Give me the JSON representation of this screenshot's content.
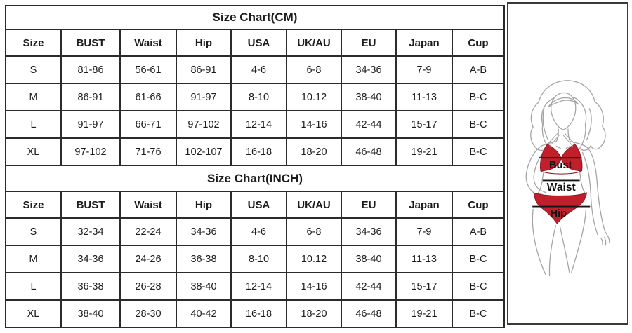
{
  "colors": {
    "bikini_red": "#bf202c",
    "bikini_red_dark": "#8f1620",
    "figure_line_gray": "#a3a3a3",
    "measure_line": "#151515",
    "table_border": "#2b2b2b",
    "text": "#1c1c1c"
  },
  "size_chart_cm": {
    "title": "Size Chart(CM)",
    "columns": [
      "Size",
      "BUST",
      "Waist",
      "Hip",
      "USA",
      "UK/AU",
      "EU",
      "Japan",
      "Cup"
    ],
    "rows": [
      [
        "S",
        "81-86",
        "56-61",
        "86-91",
        "4-6",
        "6-8",
        "34-36",
        "7-9",
        "A-B"
      ],
      [
        "M",
        "86-91",
        "61-66",
        "91-97",
        "8-10",
        "10.12",
        "38-40",
        "11-13",
        "B-C"
      ],
      [
        "L",
        "91-97",
        "66-71",
        "97-102",
        "12-14",
        "14-16",
        "42-44",
        "15-17",
        "B-C"
      ],
      [
        "XL",
        "97-102",
        "71-76",
        "102-107",
        "16-18",
        "18-20",
        "46-48",
        "19-21",
        "B-C"
      ]
    ]
  },
  "size_chart_inch": {
    "title": "Size Chart(INCH)",
    "columns": [
      "Size",
      "BUST",
      "Waist",
      "Hip",
      "USA",
      "UK/AU",
      "EU",
      "Japan",
      "Cup"
    ],
    "rows": [
      [
        "S",
        "32-34",
        "22-24",
        "34-36",
        "4-6",
        "6-8",
        "34-36",
        "7-9",
        "A-B"
      ],
      [
        "M",
        "34-36",
        "24-26",
        "36-38",
        "8-10",
        "10.12",
        "38-40",
        "11-13",
        "B-C"
      ],
      [
        "L",
        "36-38",
        "26-28",
        "38-40",
        "12-14",
        "14-16",
        "42-44",
        "15-17",
        "B-C"
      ],
      [
        "XL",
        "38-40",
        "28-30",
        "40-42",
        "16-18",
        "18-20",
        "46-48",
        "19-21",
        "B-C"
      ]
    ]
  },
  "figure": {
    "bust_label": "Bust",
    "waist_label": "Waist",
    "hip_label": "Hip"
  }
}
